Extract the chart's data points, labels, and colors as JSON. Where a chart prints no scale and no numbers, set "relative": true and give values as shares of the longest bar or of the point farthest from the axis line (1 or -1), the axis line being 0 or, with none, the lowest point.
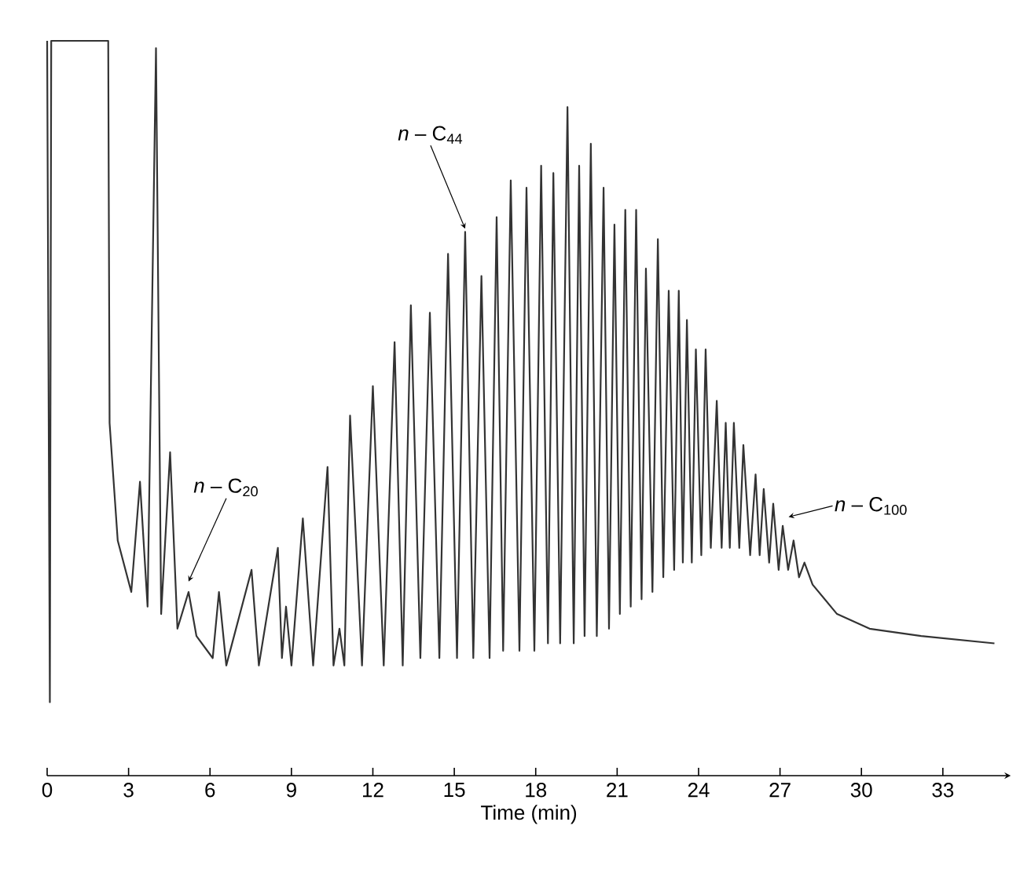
{
  "chart_data": {
    "type": "line",
    "xlabel": "Time (min)",
    "relative": true,
    "color": "#333333",
    "marker": "none",
    "line_style": "solid",
    "xlim": [
      0,
      35.5
    ],
    "xticks": [
      0,
      3,
      6,
      9,
      12,
      15,
      18,
      21,
      24,
      27,
      30,
      33
    ],
    "x": [
      0,
      0.1,
      0.15,
      2.25,
      2.3,
      2.6,
      3.1,
      3.42,
      3.7,
      4.01,
      4.2,
      4.53,
      4.8,
      5.21,
      5.5,
      6.1,
      6.33,
      6.6,
      7.53,
      7.8,
      8.5,
      8.65,
      8.8,
      9.0,
      9.42,
      9.8,
      10.33,
      10.55,
      10.77,
      10.95,
      11.16,
      11.6,
      12.0,
      12.4,
      12.8,
      13.1,
      13.4,
      13.75,
      14.1,
      14.45,
      14.77,
      15.1,
      15.4,
      15.7,
      16.0,
      16.3,
      16.56,
      16.8,
      17.08,
      17.4,
      17.66,
      17.95,
      18.2,
      18.45,
      18.65,
      18.9,
      19.17,
      19.4,
      19.6,
      19.8,
      20.03,
      20.25,
      20.5,
      20.7,
      20.9,
      21.1,
      21.3,
      21.5,
      21.7,
      21.9,
      22.06,
      22.3,
      22.5,
      22.7,
      22.9,
      23.1,
      23.27,
      23.42,
      23.57,
      23.75,
      23.9,
      24.1,
      24.26,
      24.45,
      24.67,
      24.85,
      25.0,
      25.15,
      25.3,
      25.5,
      25.65,
      25.9,
      26.1,
      26.25,
      26.4,
      26.6,
      26.75,
      26.95,
      27.1,
      27.3,
      27.5,
      27.7,
      27.9,
      28.2,
      29.1,
      30.3,
      32.2,
      34.9
    ],
    "values": [
      1.0,
      0.1,
      1.0,
      1.0,
      0.48,
      0.32,
      0.25,
      0.4,
      0.23,
      0.99,
      0.22,
      0.44,
      0.2,
      0.25,
      0.19,
      0.16,
      0.25,
      0.15,
      0.28,
      0.15,
      0.31,
      0.16,
      0.23,
      0.15,
      0.35,
      0.15,
      0.42,
      0.15,
      0.2,
      0.15,
      0.49,
      0.15,
      0.53,
      0.15,
      0.59,
      0.15,
      0.64,
      0.16,
      0.63,
      0.16,
      0.71,
      0.16,
      0.74,
      0.16,
      0.68,
      0.16,
      0.76,
      0.17,
      0.81,
      0.17,
      0.8,
      0.17,
      0.83,
      0.18,
      0.82,
      0.18,
      0.91,
      0.18,
      0.83,
      0.19,
      0.86,
      0.19,
      0.8,
      0.2,
      0.75,
      0.22,
      0.77,
      0.23,
      0.77,
      0.24,
      0.69,
      0.25,
      0.73,
      0.27,
      0.66,
      0.28,
      0.66,
      0.29,
      0.62,
      0.29,
      0.58,
      0.3,
      0.58,
      0.31,
      0.51,
      0.31,
      0.48,
      0.31,
      0.48,
      0.31,
      0.45,
      0.3,
      0.41,
      0.3,
      0.39,
      0.29,
      0.37,
      0.28,
      0.34,
      0.28,
      0.32,
      0.27,
      0.29,
      0.26,
      0.22,
      0.2,
      0.19,
      0.18
    ],
    "annotations": [
      {
        "text": "*n* – C$_{20}$",
        "x": 5.21,
        "y": 0.26
      },
      {
        "text": "*n* – C$_{44}$",
        "x": 15.4,
        "y": 0.74
      },
      {
        "text": "*n* – C$_{100}$",
        "x": 27.2,
        "y": 0.35
      }
    ]
  }
}
